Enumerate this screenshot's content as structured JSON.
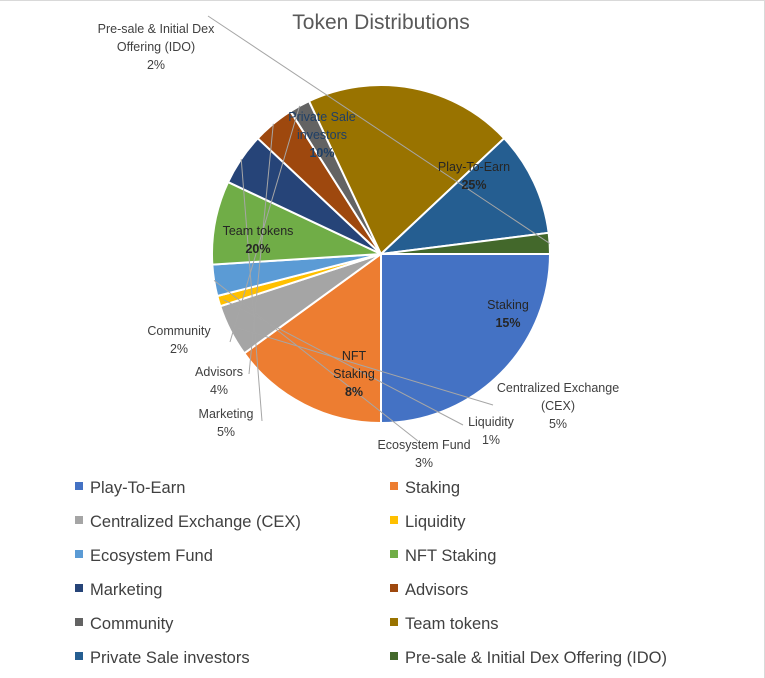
{
  "chart_data": {
    "type": "pie",
    "title": "Token Distributions",
    "start_angle_deg": 0,
    "direction": "clockwise",
    "legend_position": "bottom",
    "slices": [
      {
        "label": "Play-To-Earn",
        "value": 25,
        "percent_label": "25%",
        "color": "#4472C4",
        "label_lines": [
          "Play-To-Earn"
        ],
        "label_position": "inside",
        "label_color": "#262626"
      },
      {
        "label": "Staking",
        "value": 15,
        "percent_label": "15%",
        "color": "#ED7D31",
        "label_lines": [
          "Staking"
        ],
        "label_position": "inside",
        "label_color": "#262626"
      },
      {
        "label": "Centralized Exchange (CEX)",
        "value": 5,
        "percent_label": "5%",
        "color": "#A5A5A5",
        "label_lines": [
          "Centralized Exchange",
          "(CEX)"
        ],
        "label_position": "outside",
        "label_color": "#404040"
      },
      {
        "label": "Liquidity",
        "value": 1,
        "percent_label": "1%",
        "color": "#FFC000",
        "label_lines": [
          "Liquidity"
        ],
        "label_position": "outside",
        "label_color": "#404040"
      },
      {
        "label": "Ecosystem Fund",
        "value": 3,
        "percent_label": "3%",
        "color": "#5B9BD5",
        "label_lines": [
          "Ecosystem Fund"
        ],
        "label_position": "outside",
        "label_color": "#404040"
      },
      {
        "label": "NFT Staking",
        "value": 8,
        "percent_label": "8%",
        "color": "#70AD47",
        "label_lines": [
          "NFT",
          "Staking"
        ],
        "label_position": "inside",
        "label_color": "#262626"
      },
      {
        "label": "Marketing",
        "value": 5,
        "percent_label": "5%",
        "color": "#264478",
        "label_lines": [
          "Marketing"
        ],
        "label_position": "outside",
        "label_color": "#404040"
      },
      {
        "label": "Advisors",
        "value": 4,
        "percent_label": "4%",
        "color": "#9E480E",
        "label_lines": [
          "Advisors"
        ],
        "label_position": "outside",
        "label_color": "#404040"
      },
      {
        "label": "Community",
        "value": 2,
        "percent_label": "2%",
        "color": "#636363",
        "label_lines": [
          "Community"
        ],
        "label_position": "outside",
        "label_color": "#404040"
      },
      {
        "label": "Team tokens",
        "value": 20,
        "percent_label": "20%",
        "color": "#997300",
        "label_lines": [
          "Team tokens"
        ],
        "label_position": "inside",
        "label_color": "#262626"
      },
      {
        "label": "Private Sale investors",
        "value": 10,
        "percent_label": "10%",
        "color": "#255E91",
        "label_lines": [
          "Private Sale",
          "investors"
        ],
        "label_position": "inside",
        "label_color": "#1f3f66"
      },
      {
        "label": "Pre-sale & Initial Dex Offering (IDO)",
        "value": 2,
        "percent_label": "2%",
        "color": "#43682B",
        "label_lines": [
          "Pre-sale & Initial Dex",
          "Offering (IDO)"
        ],
        "label_position": "outside",
        "label_color": "#404040"
      }
    ],
    "legend": [
      {
        "label": "Play-To-Earn",
        "color": "#4472C4"
      },
      {
        "label": "Staking",
        "color": "#ED7D31"
      },
      {
        "label": "Centralized Exchange (CEX)",
        "color": "#A5A5A5"
      },
      {
        "label": "Liquidity",
        "color": "#FFC000"
      },
      {
        "label": "Ecosystem Fund",
        "color": "#5B9BD5"
      },
      {
        "label": "NFT Staking",
        "color": "#70AD47"
      },
      {
        "label": "Marketing",
        "color": "#264478"
      },
      {
        "label": "Advisors",
        "color": "#9E480E"
      },
      {
        "label": "Community",
        "color": "#636363"
      },
      {
        "label": "Team tokens",
        "color": "#997300"
      },
      {
        "label": "Private Sale investors",
        "color": "#255E91"
      },
      {
        "label": "Pre-sale & Initial Dex Offering (IDO)",
        "color": "#43682B"
      }
    ]
  }
}
